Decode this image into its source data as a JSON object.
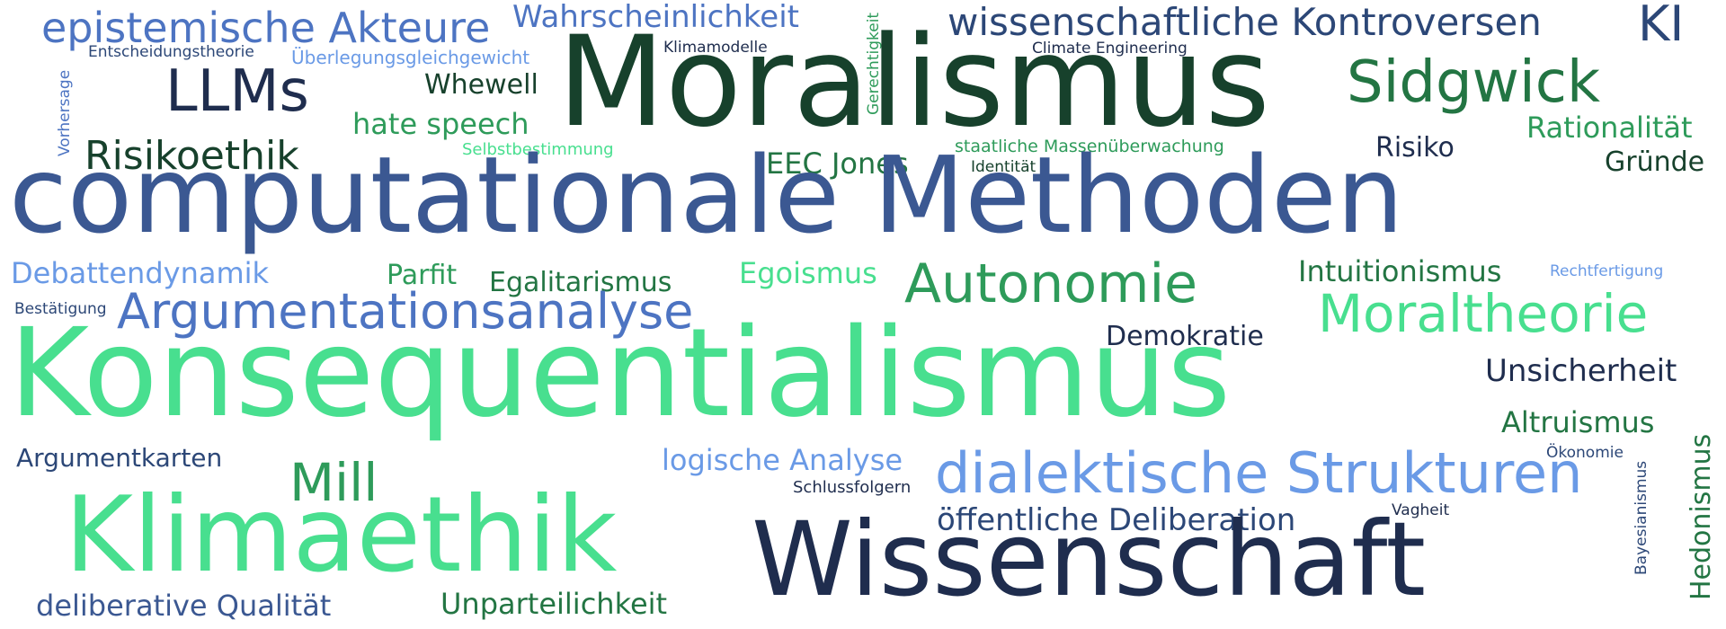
{
  "wordcloud": {
    "colors": {
      "navy": "#1f2d4e",
      "slate": "#2c4777",
      "blue": "#3b5892",
      "mid_blue": "#4d74c2",
      "light_blue": "#6a9ae6",
      "dark_green": "#17412c",
      "green": "#237543",
      "mid_green": "#2e9b5a",
      "light_green": "#48df8f"
    },
    "words": [
      {
        "text": "epistemische Akteure"
      },
      {
        "text": "Wahrscheinlichkeit"
      },
      {
        "text": "Gerechtigkeit"
      },
      {
        "text": "wissenschaftliche Kontroversen"
      },
      {
        "text": "KI"
      },
      {
        "text": "Entscheidungstheorie"
      },
      {
        "text": "Überlegungsgleichgewicht"
      },
      {
        "text": "Klimamodelle"
      },
      {
        "text": "Climate Engineering"
      },
      {
        "text": "Moralismus"
      },
      {
        "text": "Vorhersage"
      },
      {
        "text": "LLMs"
      },
      {
        "text": "Whewell"
      },
      {
        "text": "Sidgwick"
      },
      {
        "text": "hate speech"
      },
      {
        "text": "Rationalität"
      },
      {
        "text": "Risikoethik"
      },
      {
        "text": "Selbstbestimmung"
      },
      {
        "text": "staatliche Massenüberwachung"
      },
      {
        "text": "Risiko"
      },
      {
        "text": "EEC Jones"
      },
      {
        "text": "Identität"
      },
      {
        "text": "Gründe"
      },
      {
        "text": "computationale Methoden"
      },
      {
        "text": "Debattendynamik"
      },
      {
        "text": "Parfit"
      },
      {
        "text": "Egalitarismus"
      },
      {
        "text": "Egoismus"
      },
      {
        "text": "Autonomie"
      },
      {
        "text": "Intuitionismus"
      },
      {
        "text": "Rechtfertigung"
      },
      {
        "text": "Bestätigung"
      },
      {
        "text": "Argumentationsanalyse"
      },
      {
        "text": "Demokratie"
      },
      {
        "text": "Moraltheorie"
      },
      {
        "text": "Konsequentialismus"
      },
      {
        "text": "Unsicherheit"
      },
      {
        "text": "Altruismus"
      },
      {
        "text": "Hedonismus"
      },
      {
        "text": "Argumentkarten"
      },
      {
        "text": "logische Analyse"
      },
      {
        "text": "Ökonomie"
      },
      {
        "text": "Mill"
      },
      {
        "text": "dialektische Strukturen"
      },
      {
        "text": "Bayesianismus"
      },
      {
        "text": "Schlussfolgern"
      },
      {
        "text": "Klimaethik"
      },
      {
        "text": "öffentliche Deliberation"
      },
      {
        "text": "Vagheit"
      },
      {
        "text": "Wissenschaft"
      },
      {
        "text": "deliberative Qualität"
      },
      {
        "text": "Unparteilichkeit"
      }
    ]
  }
}
